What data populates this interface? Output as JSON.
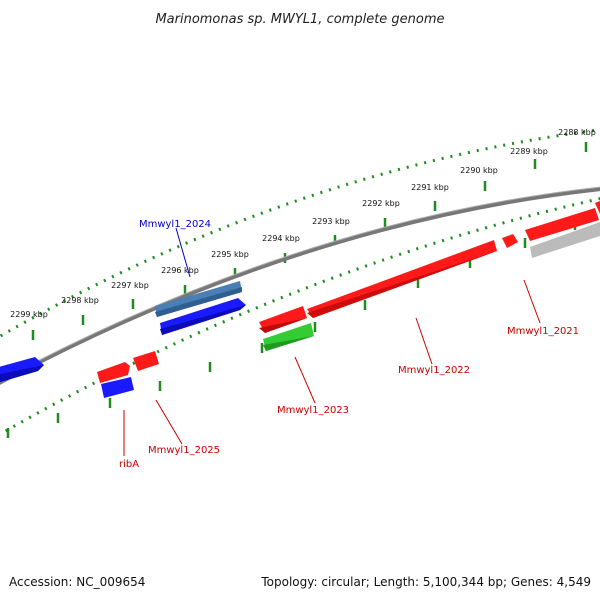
{
  "title": "Marinomonas sp. MWYL1, complete genome",
  "footer": {
    "accession": "Accession: NC_009654",
    "topology": "Topology: circular; Length: 5,100,344 bp; Genes: 4,549"
  },
  "colors": {
    "backbone": "#888888",
    "tick": "#1e8c1e",
    "forward_label": "#0000cc",
    "reverse_label": "#cc0000",
    "gene_red": "#ff1a1a",
    "gene_blue": "#1a1aff",
    "gene_steel": "#4a7fb5",
    "gene_green": "#33cc33",
    "gene_gray": "#bbbbbb"
  },
  "ticks": [
    {
      "label": "2288 kbp"
    },
    {
      "label": "2289 kbp"
    },
    {
      "label": "2290 kbp"
    },
    {
      "label": "2291 kbp"
    },
    {
      "label": "2292 kbp"
    },
    {
      "label": "2293 kbp"
    },
    {
      "label": "2294 kbp"
    },
    {
      "label": "2295 kbp"
    },
    {
      "label": "2296 kbp"
    },
    {
      "label": "2297 kbp"
    },
    {
      "label": "2298 kbp"
    },
    {
      "label": "2299 kbp"
    }
  ],
  "genes": [
    {
      "id": "Mmwyl1_2021",
      "label": "Mmwyl1_2021",
      "color": "red"
    },
    {
      "id": "Mmwyl1_2022",
      "label": "Mmwyl1_2022",
      "color": "red"
    },
    {
      "id": "Mmwyl1_2023",
      "label": "Mmwyl1_2023",
      "color": "red"
    },
    {
      "id": "Mmwyl1_2024",
      "label": "Mmwyl1_2024",
      "color": "blue"
    },
    {
      "id": "Mmwyl1_2025",
      "label": "Mmwyl1_2025",
      "color": "red"
    },
    {
      "id": "ribA",
      "label": "ribA",
      "color": "red"
    }
  ]
}
